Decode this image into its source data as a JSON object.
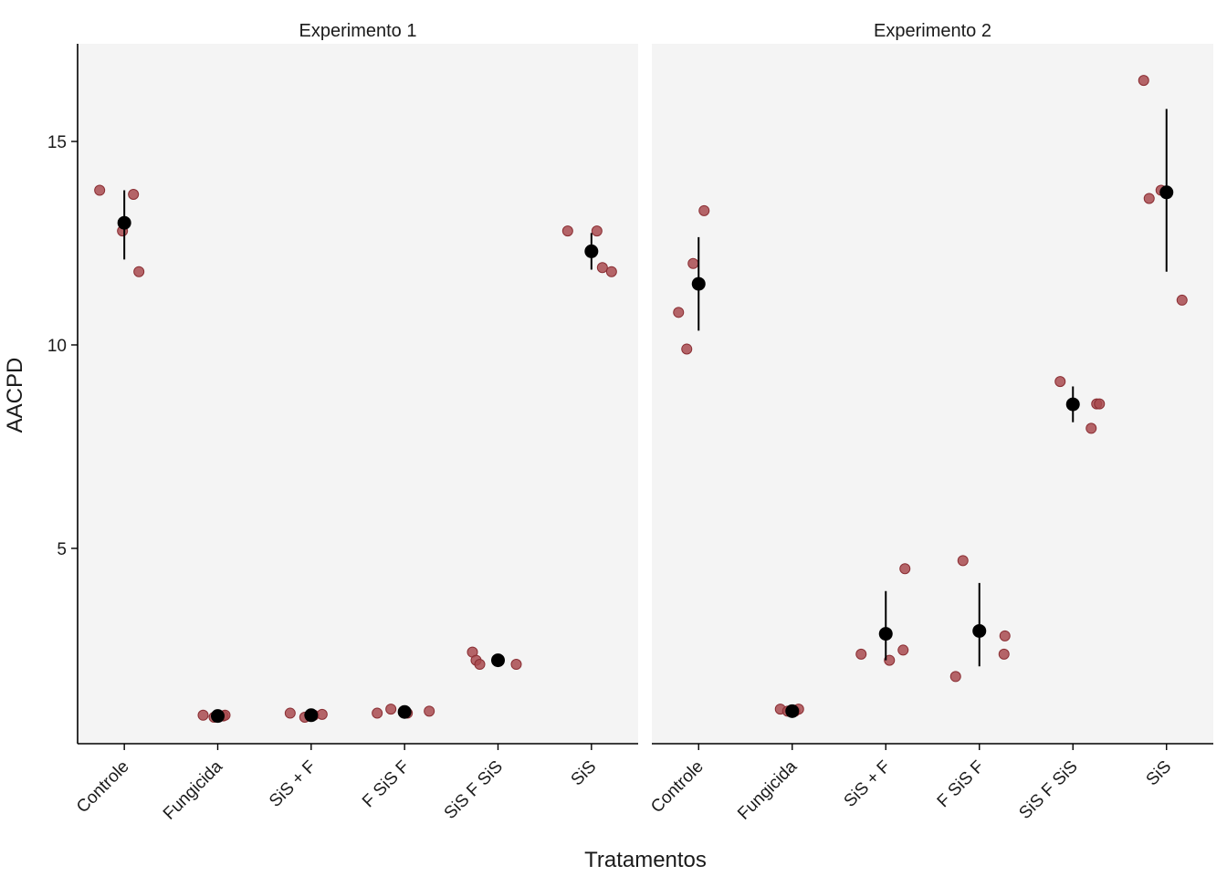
{
  "chart_data": [
    {
      "type": "scatter",
      "panel": "Experimento 1",
      "title": "Experimento 1",
      "xlabel": "Tratamentos",
      "ylabel": "AACPD",
      "categories": [
        "Controle",
        "Fungicida",
        "SiS + F",
        "F SiS F",
        "SiS F SiS",
        "SiS"
      ],
      "ylim": [
        0.2,
        17.4
      ],
      "yticks": [
        5,
        10,
        15
      ],
      "grid": false,
      "points": [
        {
          "category": "Controle",
          "values": [
            13.8,
            12.8,
            13.7,
            11.8
          ]
        },
        {
          "category": "Fungicida",
          "values": [
            0.9,
            0.85,
            0.88,
            0.9
          ]
        },
        {
          "category": "SiS + F",
          "values": [
            0.95,
            0.85,
            0.9,
            0.92
          ]
        },
        {
          "category": "F SiS F",
          "values": [
            0.95,
            1.05,
            0.95,
            1.0
          ]
        },
        {
          "category": "SiS F SiS",
          "values": [
            2.45,
            2.25,
            2.15,
            2.15
          ]
        },
        {
          "category": "SiS",
          "values": [
            12.8,
            12.8,
            11.9,
            11.8
          ]
        }
      ],
      "summary": [
        {
          "category": "Controle",
          "mean": 13.0,
          "lower": 12.1,
          "upper": 13.8
        },
        {
          "category": "Fungicida",
          "mean": 0.88,
          "lower": 0.85,
          "upper": 0.9
        },
        {
          "category": "SiS + F",
          "mean": 0.9,
          "lower": 0.85,
          "upper": 0.95
        },
        {
          "category": "F SiS F",
          "mean": 0.98,
          "lower": 0.93,
          "upper": 1.04
        },
        {
          "category": "SiS F SiS",
          "mean": 2.25,
          "lower": 2.13,
          "upper": 2.37
        },
        {
          "category": "SiS",
          "mean": 12.3,
          "lower": 11.85,
          "upper": 12.75
        }
      ]
    },
    {
      "type": "scatter",
      "panel": "Experimento 2",
      "title": "Experimento 2",
      "xlabel": "Tratamentos",
      "ylabel": "AACPD",
      "categories": [
        "Controle",
        "Fungicida",
        "SiS + F",
        "F SiS F",
        "SiS F SiS",
        "SiS"
      ],
      "ylim": [
        0.2,
        17.4
      ],
      "yticks": [
        5,
        10,
        15
      ],
      "grid": false,
      "points": [
        {
          "category": "Controle",
          "values": [
            10.8,
            9.9,
            12.0,
            13.3
          ]
        },
        {
          "category": "Fungicida",
          "values": [
            1.05,
            1.0,
            1.0,
            1.05
          ]
        },
        {
          "category": "SiS + F",
          "values": [
            2.4,
            2.25,
            2.5,
            4.5
          ]
        },
        {
          "category": "F SiS F",
          "values": [
            1.85,
            4.7,
            2.4,
            2.85
          ]
        },
        {
          "category": "SiS F SiS",
          "values": [
            9.1,
            7.95,
            8.55,
            8.55
          ]
        },
        {
          "category": "SiS",
          "values": [
            16.5,
            13.6,
            13.8,
            11.1
          ]
        }
      ],
      "summary": [
        {
          "category": "Controle",
          "mean": 11.5,
          "lower": 10.35,
          "upper": 12.65
        },
        {
          "category": "Fungicida",
          "mean": 1.0,
          "lower": 0.96,
          "upper": 1.04
        },
        {
          "category": "SiS + F",
          "mean": 2.9,
          "lower": 2.25,
          "upper": 3.95
        },
        {
          "category": "F SiS F",
          "mean": 2.97,
          "lower": 2.1,
          "upper": 4.15
        },
        {
          "category": "SiS F SiS",
          "mean": 8.54,
          "lower": 8.1,
          "upper": 8.98
        },
        {
          "category": "SiS",
          "mean": 13.75,
          "lower": 11.8,
          "upper": 15.8
        }
      ]
    }
  ],
  "colors": {
    "panel_background": "#f4f4f4",
    "point_fill": "#a84a4f",
    "point_stroke": "#8a2e33",
    "summary": "#000000",
    "axis": "#000000",
    "text": "#1a1a1a"
  }
}
